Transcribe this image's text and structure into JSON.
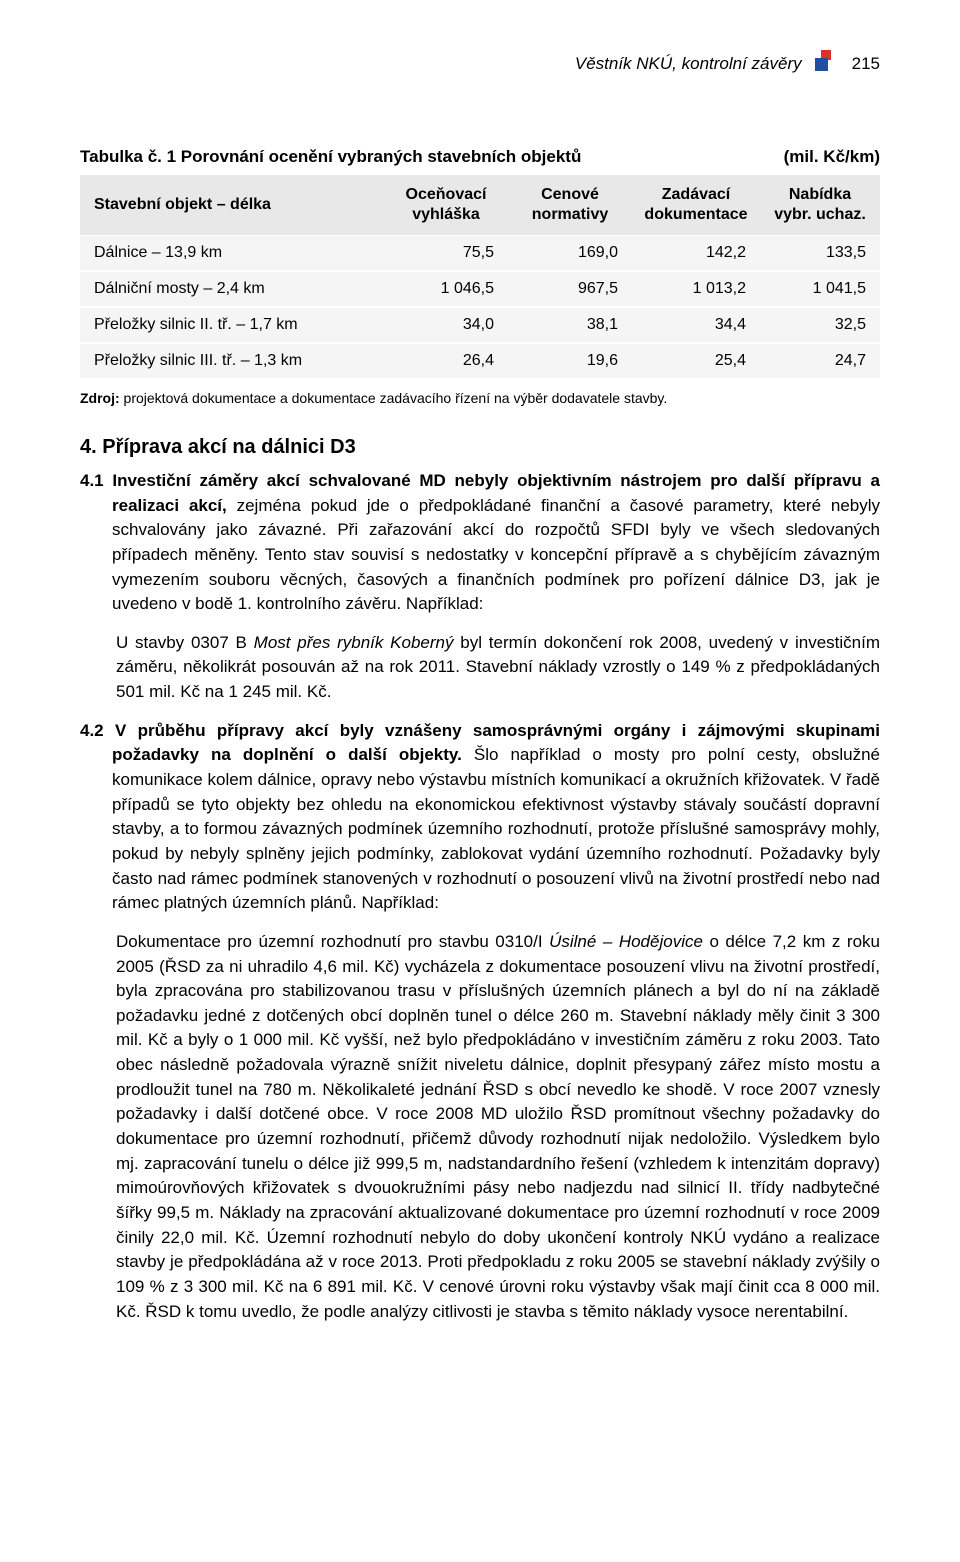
{
  "header": {
    "text": "Věstník NKÚ, kontrolní závěry",
    "page_number": "215",
    "logo_colors": {
      "top": "#d9332b",
      "bottom": "#1f4fa3"
    }
  },
  "table": {
    "title_left": "Tabulka č. 1 Porovnání ocenění vybraných stavebních objektů",
    "title_right": "(mil. Kč/km)",
    "columns": [
      "Stavební objekt – délka",
      "Oceňovací vyhláška",
      "Cenové normativy",
      "Zadávací dokumentace",
      "Nabídka vybr. uchaz."
    ],
    "rows": [
      [
        "Dálnice – 13,9 km",
        "75,5",
        "169,0",
        "142,2",
        "133,5"
      ],
      [
        "Dálniční mosty – 2,4 km",
        "1 046,5",
        "967,5",
        "1 013,2",
        "1 041,5"
      ],
      [
        "Přeložky silnic II. tř. – 1,7 km",
        "34,0",
        "38,1",
        "34,4",
        "32,5"
      ],
      [
        "Přeložky silnic III. tř. – 1,3 km",
        "26,4",
        "19,6",
        "25,4",
        "24,7"
      ]
    ],
    "header_bg": "#e8e8e8",
    "row_bg": "#f5f5f5",
    "col_widths_pct": [
      38,
      15.5,
      15.5,
      16,
      15
    ]
  },
  "source": {
    "label": "Zdroj:",
    "text": " projektová dokumentace a dokumentace zadávacího řízení na výběr dodavatele stavby."
  },
  "section4": {
    "heading": "4. Příprava akcí na dálnici D3",
    "p41_lead": "4.1 Investiční záměry akcí schvalované MD nebyly objektivním nástrojem pro další přípravu a realizaci akcí,",
    "p41_rest": " zejména pokud jde o předpokládané finanční a časové parametry, které nebyly schvalovány jako závazné. Při zařazování akcí do rozpočtů SFDI byly ve všech sledovaných případech měněny. Tento stav souvisí s nedostatky v koncepční přípravě a s chybějícím závazným vymezením souboru věcných, časových a finančních podmínek pro pořízení dálnice D3, jak je uvedeno v bodě 1. kontrolního závěru. Například:",
    "p41_ex_a": "U stavby 0307 B ",
    "p41_ex_it": "Most přes rybník Koberný",
    "p41_ex_b": " byl termín dokončení rok 2008, uvedený v investičním záměru, několikrát posouván až na rok 2011. Stavební náklady vzrostly o 149 % z předpokládaných 501 mil. Kč na 1 245 mil. Kč.",
    "p42_lead": "4.2 V průběhu přípravy akcí byly vznášeny samosprávnými orgány i zájmovými skupinami požadavky na doplnění o další objekty.",
    "p42_rest": " Šlo například o mosty pro polní cesty, obslužné komunikace kolem dálnice, opravy nebo výstavbu místních komunikací a okružních křižovatek. V řadě případů se tyto objekty bez ohledu na ekonomickou efektivnost výstavby stávaly součástí dopravní stavby, a to formou závazných podmínek územního rozhodnutí, protože příslušné samosprávy mohly, pokud by nebyly splněny jejich podmínky, zablokovat vydání územního rozhodnutí. Požadavky byly často nad rámec podmínek stanovených v rozhodnutí o posouzení vlivů na životní prostředí nebo nad rámec platných územních plánů. Například:",
    "p42_ex_a": "Dokumentace pro územní rozhodnutí pro stavbu 0310/I ",
    "p42_ex_it": "Úsilné – Hodějovice",
    "p42_ex_b": " o délce 7,2 km z roku 2005 (ŘSD za ni uhradilo 4,6 mil. Kč) vycházela z dokumentace posouzení vlivu na životní prostředí, byla zpracována pro stabilizovanou trasu v příslušných územních plánech a byl do ní na základě požadavku jedné z dotčených obcí doplněn tunel o délce 260 m. Stavební náklady měly činit 3 300 mil. Kč a byly o 1 000 mil. Kč vyšší, než bylo předpokládáno v investičním záměru z roku 2003. Tato obec následně požadovala výrazně snížit niveletu dálnice, doplnit přesypaný zářez místo mostu a prodloužit tunel na 780 m. Několikaleté jednání ŘSD s obcí nevedlo ke shodě. V roce 2007 vznesly požadavky i další dotčené obce. V roce 2008 MD uložilo ŘSD promítnout všechny požadavky do dokumentace pro územní rozhodnutí, přičemž důvody rozhodnutí nijak nedoložilo. Výsledkem bylo mj. zapracování tunelu o délce již 999,5 m, nadstandardního řešení (vzhledem k intenzitám dopravy) mimoúrovňových křižovatek s dvouokružními pásy nebo nadjezdu nad silnicí II. třídy nadbytečné šířky 99,5 m. Náklady na zpracování aktualizované dokumentace pro územní rozhodnutí v roce 2009 činily 22,0 mil. Kč. Územní rozhodnutí nebylo do doby ukončení kontroly NKÚ vydáno a realizace stavby je předpokládána až v roce 2013. Proti předpokladu z roku 2005 se stavební náklady zvýšily o 109 % z 3 300 mil. Kč na 6 891 mil. Kč. V cenové úrovni roku výstavby však mají činit cca 8 000 mil. Kč. ŘSD k tomu uvedlo, že podle analýzy citlivosti je stavba s těmito náklady vysoce nerentabilní."
  }
}
